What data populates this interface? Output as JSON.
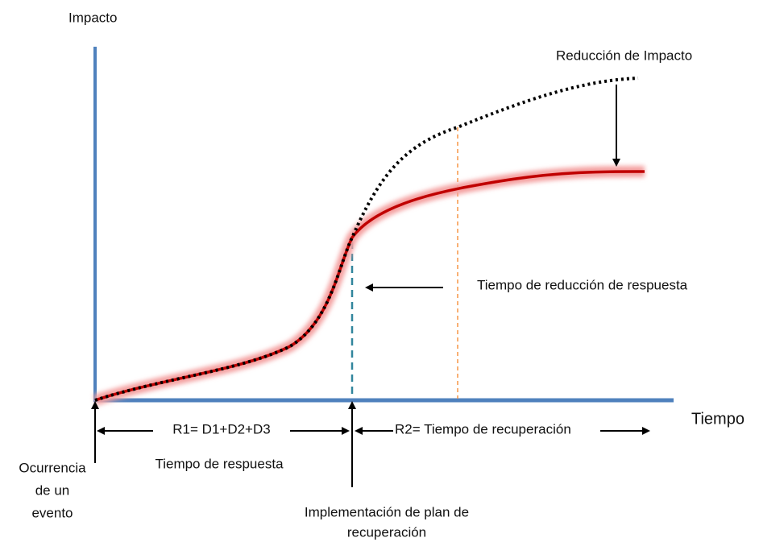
{
  "axes": {
    "y_label": "Impacto",
    "x_label": "Tiempo"
  },
  "annotations": {
    "reduction": "Reducción de Impacto",
    "response_reduction": "Tiempo de reducción de respuesta",
    "r1": "R1= D1+D2+D3",
    "r2": "R2= Tiempo de recuperación",
    "response_time": "Tiempo de respuesta",
    "event": [
      "Ocurrencia",
      "de un",
      "evento"
    ],
    "plan": [
      "Implementación de plan de",
      "recuperación"
    ]
  }
}
